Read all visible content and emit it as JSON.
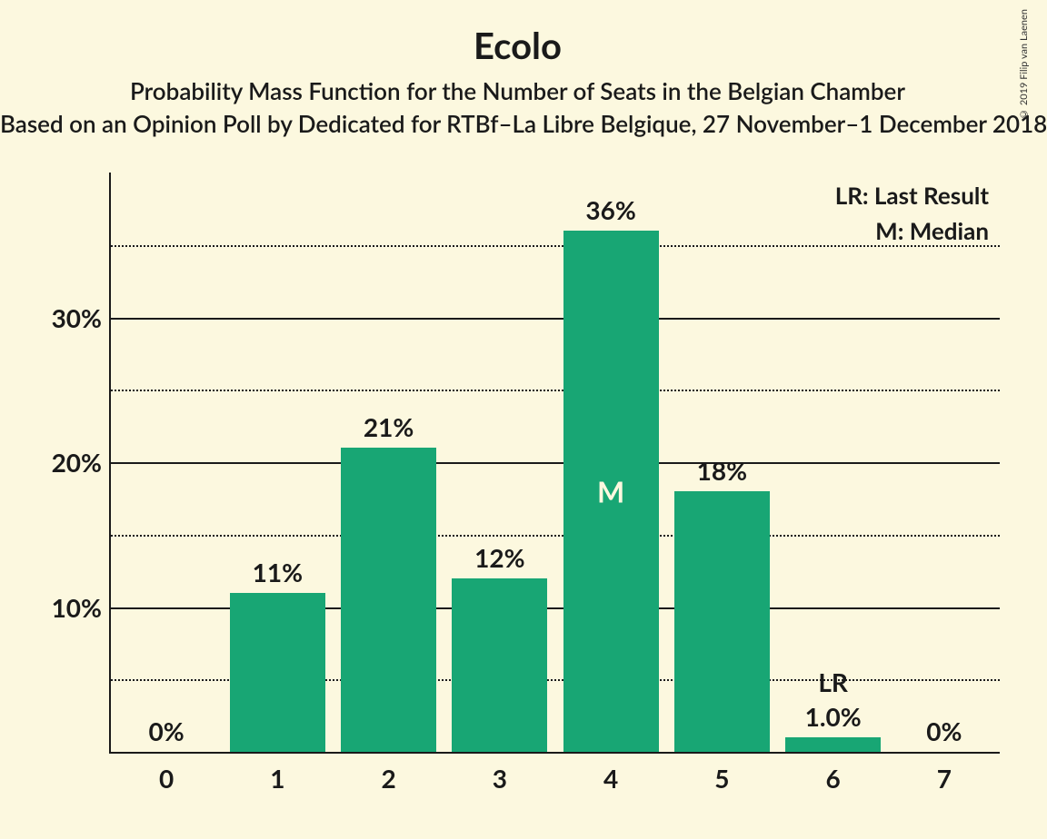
{
  "title": "Ecolo",
  "subtitle1": "Probability Mass Function for the Number of Seats in the Belgian Chamber",
  "subtitle2": "Based on an Opinion Poll by Dedicated for RTBf–La Libre Belgique, 27 November–1 December 2018",
  "copyright": "© 2019 Filip van Laenen",
  "chart": {
    "type": "bar",
    "background_color": "#fcf8df",
    "bar_color": "#18a674",
    "text_color": "#1a1a1a",
    "inside_text_color": "#fcf8df",
    "grid_color": "#1a1a1a",
    "ylim": [
      0,
      40
    ],
    "ytick_major": [
      10,
      20,
      30
    ],
    "ytick_minor": [
      5,
      15,
      25,
      35
    ],
    "ytick_labels": {
      "10": "10%",
      "20": "20%",
      "30": "30%"
    },
    "categories": [
      "0",
      "1",
      "2",
      "3",
      "4",
      "5",
      "6",
      "7"
    ],
    "values": [
      0,
      11,
      21,
      12,
      36,
      18,
      1.0,
      0
    ],
    "value_labels": [
      "0%",
      "11%",
      "21%",
      "12%",
      "36%",
      "18%",
      "1.0%",
      "0%"
    ],
    "median_index": 4,
    "median_label": "M",
    "lr_index": 6,
    "lr_label": "LR",
    "legend_lr": "LR: Last Result",
    "legend_m": "M: Median",
    "bar_width": 0.86,
    "title_fontsize": 40,
    "subtitle_fontsize": 26,
    "axis_fontsize": 28
  }
}
